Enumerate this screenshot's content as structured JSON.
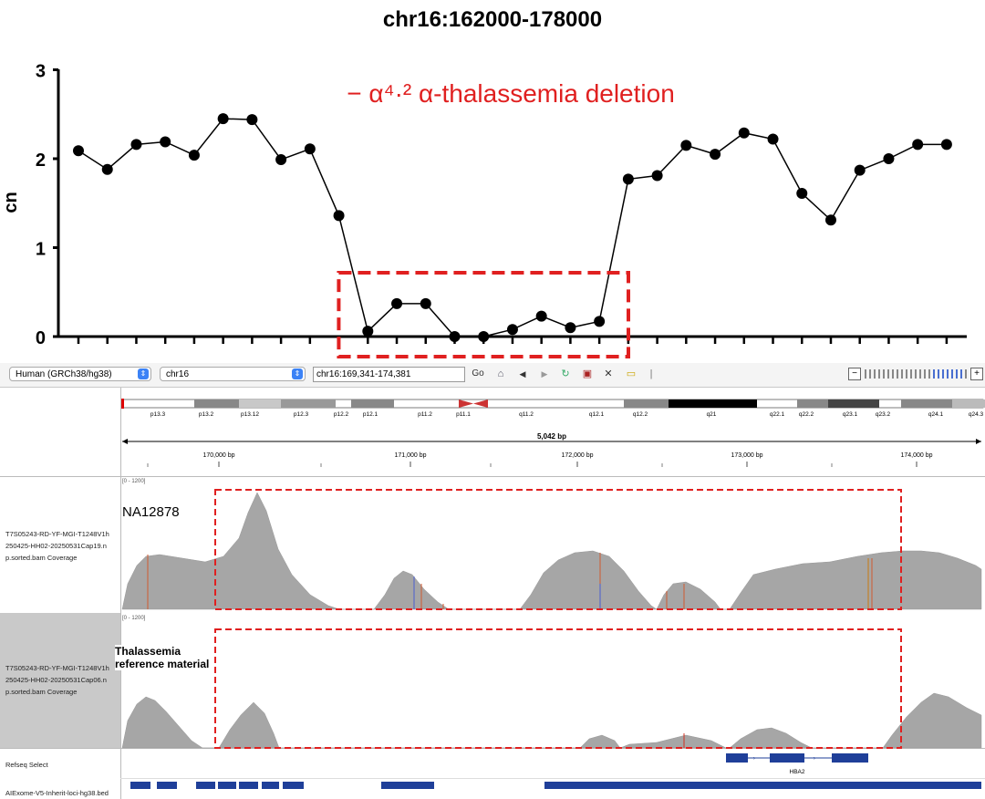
{
  "cn_chart": {
    "title": "chr16:162000-178000",
    "annotation": "− α⁴·² α-thalassemia deletion",
    "ylabel": "cn"
  },
  "chart_data": {
    "type": "line",
    "title": "chr16:162000-178000",
    "ylabel": "cn",
    "ylim": [
      0,
      3
    ],
    "yticks": [
      "0",
      "1",
      "2",
      "3"
    ],
    "x": [
      1,
      2,
      3,
      4,
      5,
      6,
      7,
      8,
      9,
      10,
      11,
      12,
      13,
      14,
      15,
      16,
      17,
      18,
      19,
      20,
      21,
      22,
      23,
      24,
      25,
      26,
      27,
      28,
      29,
      30,
      31
    ],
    "values": [
      2.09,
      1.88,
      2.16,
      2.19,
      2.04,
      2.45,
      2.44,
      1.99,
      2.11,
      1.36,
      0.06,
      0.37,
      0.37,
      0.0,
      0.0,
      0.08,
      0.23,
      0.1,
      0.17,
      1.77,
      1.81,
      2.15,
      2.05,
      2.29,
      2.22,
      1.61,
      1.31,
      1.87,
      2.0,
      2.16,
      2.16
    ],
    "grid": false,
    "highlight_box_x": [
      10.5,
      19.5
    ],
    "color": "#000000",
    "highlight_color": "#e02020"
  },
  "toolbar": {
    "genome": "Human (GRCh38/hg38)",
    "chromosome": "chr16",
    "locus": "chr16:169,341-174,381",
    "go": "Go",
    "icons": [
      "home-icon",
      "back-icon",
      "forward-icon",
      "refresh-icon",
      "roi-icon",
      "close-icon",
      "popup-icon"
    ]
  },
  "ideogram": {
    "bands": [
      "p13.3",
      "p13.2",
      "p13.12",
      "p12.3",
      "p12.2",
      "p12.1",
      "p11.2",
      "p11.1",
      "q11.2",
      "q12.1",
      "q12.2",
      "q21",
      "q22.1",
      "q22.2",
      "q23.1",
      "q23.2",
      "q24.1",
      "q24.3"
    ]
  },
  "ruler": {
    "span": "5,042 bp",
    "ticks": [
      "170,000 bp",
      "171,000 bp",
      "172,000 bp",
      "173,000 bp",
      "174,000 bp"
    ]
  },
  "tracks": {
    "coverage1": {
      "name": "T7S05243-RD-YF-MGI-T1248V1h250425-HH02-20250531Cap19.map.sorted.bam Coverage",
      "name_lines": [
        "T7S05243-RD-YF-MGI-T1248V1h",
        "250425-HH02-20250531Cap19.n",
        "p.sorted.bam Coverage"
      ],
      "range": "[0 - 1200]",
      "sample_label": "NA12878"
    },
    "coverage2": {
      "name_lines": [
        "T7S05243-RD-YF-MGI-T1248V1h",
        "250425-HH02-20250531Cap06.n",
        "p.sorted.bam Coverage"
      ],
      "range": "[0 - 1200]",
      "sample_label_lines": [
        "Thalassemia",
        "reference material"
      ]
    },
    "refseq": {
      "name": "Refseq Select",
      "gene": "HBA2"
    },
    "bed": {
      "name": "AIExome-V5-Inherit-loci-hg38.bed"
    }
  }
}
